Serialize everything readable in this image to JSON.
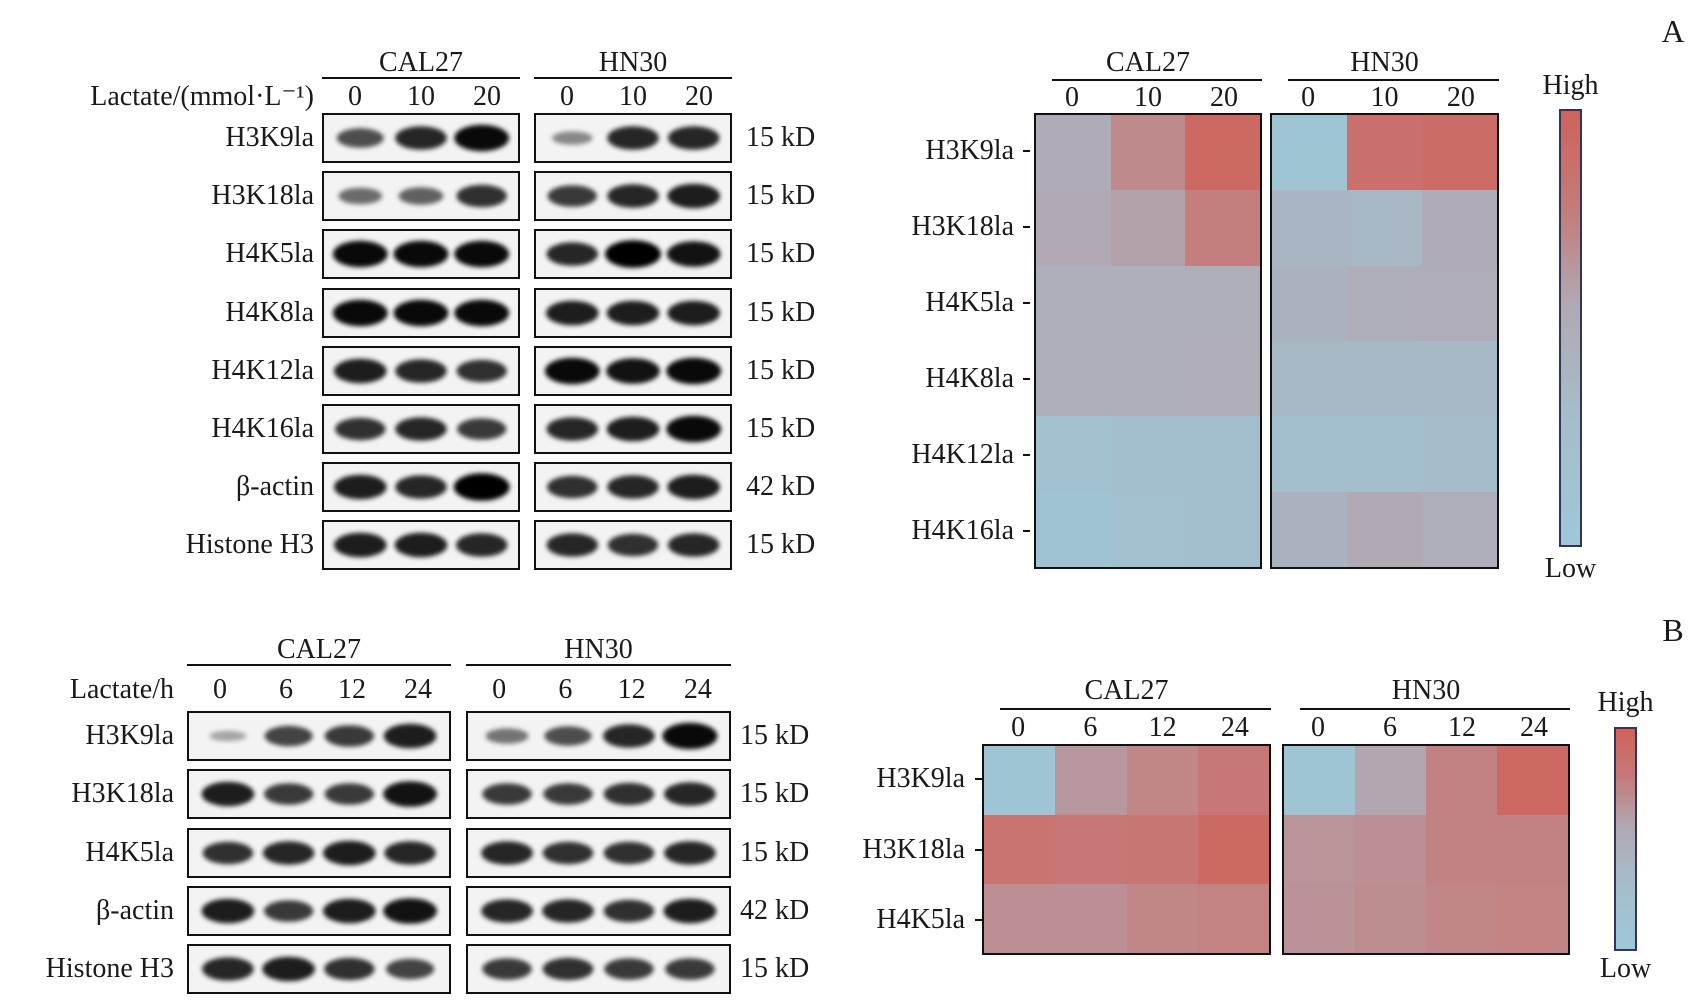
{
  "panels": [
    {
      "letter": "A",
      "blot": {
        "dose_label": "Lactate/(mmol·L⁻¹)",
        "cell_lines": [
          {
            "name": "CAL27",
            "lanes": [
              "0",
              "10",
              "20"
            ]
          },
          {
            "name": "HN30",
            "lanes": [
              "0",
              "10",
              "20"
            ]
          }
        ],
        "rows": [
          {
            "label": "H3K9la",
            "size": "15 kD",
            "bands": [
              [
                0.6,
                0.8,
                0.95
              ],
              [
                0.3,
                0.8,
                0.8
              ]
            ]
          },
          {
            "label": "H3K18la",
            "size": "15 kD",
            "bands": [
              [
                0.45,
                0.5,
                0.75
              ],
              [
                0.7,
                0.8,
                0.85
              ]
            ]
          },
          {
            "label": "H4K5la",
            "size": "15 kD",
            "bands": [
              [
                0.95,
                0.95,
                0.95
              ],
              [
                0.8,
                1.0,
                0.9
              ]
            ]
          },
          {
            "label": "H4K8la",
            "size": "15 kD",
            "bands": [
              [
                0.95,
                0.95,
                0.95
              ],
              [
                0.85,
                0.85,
                0.85
              ]
            ]
          },
          {
            "label": "H4K12la",
            "size": "15 kD",
            "bands": [
              [
                0.85,
                0.8,
                0.75
              ],
              [
                0.95,
                0.9,
                0.95
              ]
            ]
          },
          {
            "label": "H4K16la",
            "size": "15 kD",
            "bands": [
              [
                0.75,
                0.8,
                0.7
              ],
              [
                0.8,
                0.85,
                0.95
              ]
            ]
          },
          {
            "label": "β-actin",
            "size": "42 kD",
            "bands": [
              [
                0.85,
                0.8,
                1.0
              ],
              [
                0.75,
                0.8,
                0.85
              ]
            ]
          },
          {
            "label": "Histone H3",
            "size": "15 kD",
            "bands": [
              [
                0.85,
                0.85,
                0.8
              ],
              [
                0.8,
                0.75,
                0.8
              ]
            ]
          }
        ]
      }
    },
    {
      "letter": "B",
      "blot": {
        "dose_label": "Lactate/h",
        "cell_lines": [
          {
            "name": "CAL27",
            "lanes": [
              "0",
              "6",
              "12",
              "24"
            ]
          },
          {
            "name": "HN30",
            "lanes": [
              "0",
              "6",
              "12",
              "24"
            ]
          }
        ],
        "rows": [
          {
            "label": "H3K9la",
            "size": "15 kD",
            "bands": [
              [
                0.15,
                0.65,
                0.7,
                0.85
              ],
              [
                0.4,
                0.6,
                0.8,
                0.95
              ]
            ]
          },
          {
            "label": "H3K18la",
            "size": "15 kD",
            "bands": [
              [
                0.85,
                0.7,
                0.7,
                0.9
              ],
              [
                0.7,
                0.7,
                0.75,
                0.8
              ]
            ]
          },
          {
            "label": "H4K5la",
            "size": "15 kD",
            "bands": [
              [
                0.75,
                0.8,
                0.85,
                0.8
              ],
              [
                0.8,
                0.75,
                0.75,
                0.8
              ]
            ]
          },
          {
            "label": "β-actin",
            "size": "42 kD",
            "bands": [
              [
                0.85,
                0.7,
                0.85,
                0.9
              ],
              [
                0.8,
                0.8,
                0.75,
                0.85
              ]
            ]
          },
          {
            "label": "Histone H3",
            "size": "15 kD",
            "bands": [
              [
                0.8,
                0.85,
                0.75,
                0.65
              ],
              [
                0.7,
                0.75,
                0.7,
                0.7
              ]
            ]
          }
        ]
      }
    }
  ],
  "colors": {
    "low": "#9dc8d9",
    "mid": "#b1a9b4",
    "high": "#d0625a"
  },
  "chart_data": [
    {
      "type": "heatmap",
      "panel": "A",
      "rows": [
        "H3K9la",
        "H3K18la",
        "H4K5la",
        "H4K8la",
        "H4K12la",
        "H4K16la"
      ],
      "groups": [
        {
          "name": "CAL27",
          "columns": [
            "0",
            "10",
            "20"
          ],
          "values": [
            [
              0.45,
              0.72,
              0.95
            ],
            [
              0.5,
              0.55,
              0.8
            ],
            [
              0.4,
              0.4,
              0.42
            ],
            [
              0.4,
              0.4,
              0.44
            ],
            [
              0.12,
              0.14,
              0.15
            ],
            [
              0.08,
              0.12,
              0.14
            ]
          ]
        },
        {
          "name": "HN30",
          "columns": [
            "0",
            "10",
            "20"
          ],
          "values": [
            [
              0.05,
              0.9,
              0.93
            ],
            [
              0.3,
              0.28,
              0.45
            ],
            [
              0.35,
              0.42,
              0.44
            ],
            [
              0.28,
              0.28,
              0.25
            ],
            [
              0.15,
              0.15,
              0.2
            ],
            [
              0.35,
              0.5,
              0.42
            ]
          ]
        }
      ],
      "legend": {
        "high": "High",
        "low": "Low"
      },
      "value_range": [
        0,
        1
      ]
    },
    {
      "type": "heatmap",
      "panel": "B",
      "rows": [
        "H3K9la",
        "H3K18la",
        "H4K5la"
      ],
      "groups": [
        {
          "name": "CAL27",
          "columns": [
            "0",
            "6",
            "12",
            "24"
          ],
          "values": [
            [
              0.05,
              0.62,
              0.75,
              0.85
            ],
            [
              0.87,
              0.85,
              0.86,
              0.95
            ],
            [
              0.68,
              0.68,
              0.75,
              0.77
            ]
          ]
        },
        {
          "name": "HN30",
          "columns": [
            "0",
            "6",
            "12",
            "24"
          ],
          "values": [
            [
              0.05,
              0.52,
              0.78,
              0.95
            ],
            [
              0.65,
              0.68,
              0.78,
              0.78
            ],
            [
              0.66,
              0.7,
              0.75,
              0.77
            ]
          ]
        }
      ],
      "legend": {
        "high": "High",
        "low": "Low"
      },
      "value_range": [
        0,
        1
      ]
    }
  ]
}
